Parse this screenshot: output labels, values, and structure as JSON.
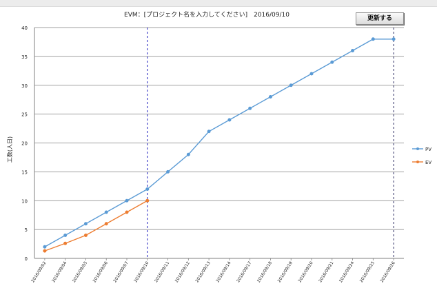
{
  "chart_title": "EVM：[プロジェクト名を入力してください]　2016/09/10",
  "update_button_label": "更新する",
  "chart_data": {
    "type": "line",
    "title": "EVM：[プロジェクト名を入力してください]　2016/09/10",
    "ylabel": "工数(人日)",
    "xlabel": "",
    "ylim": [
      0,
      40
    ],
    "yticks": [
      0,
      5,
      10,
      15,
      20,
      25,
      30,
      35,
      40
    ],
    "categories": [
      "2016/09/02",
      "2016/09/04",
      "2016/09/05",
      "2016/09/06",
      "2016/09/07",
      "2016/09/10",
      "2016/09/11",
      "2016/09/12",
      "2016/09/13",
      "2016/09/14",
      "2016/09/17",
      "2016/09/18",
      "2016/09/19",
      "2016/09/20",
      "2016/09/21",
      "2016/09/24",
      "2016/09/25",
      "2016/09/26"
    ],
    "series": [
      {
        "name": "PV",
        "color": "#5b9bd5",
        "values": [
          2,
          4,
          6,
          8,
          10,
          12,
          15,
          18,
          22,
          24,
          26,
          28,
          30,
          32,
          34,
          36,
          38,
          38
        ]
      },
      {
        "name": "EV",
        "color": "#ed7d31",
        "values": [
          1.3,
          2.6,
          4,
          6,
          8,
          10,
          null,
          null,
          null,
          null,
          null,
          null,
          null,
          null,
          null,
          null,
          null,
          null
        ]
      }
    ],
    "vertical_markers": [
      "2016/09/10",
      "2016/09/26"
    ],
    "grid": true,
    "legend_position": "right"
  }
}
